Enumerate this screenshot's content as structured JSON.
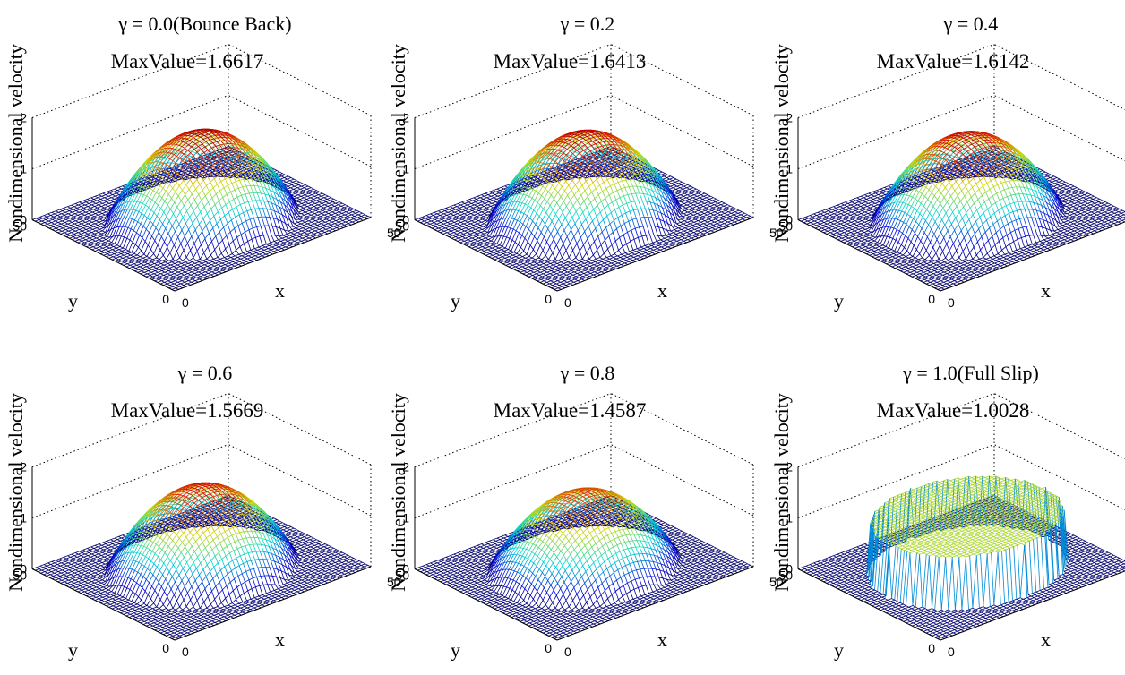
{
  "colors": {
    "low": "#0000c8",
    "high": "#c80000",
    "edge": "#000000",
    "grid": "#000000"
  },
  "chart_data": [
    {
      "type": "surface",
      "title": "γ = 0.0(Bounce Back)",
      "annotation": "MaxValue=1.6617",
      "max_value": 1.6617,
      "profile": "paraboloid",
      "xlabel": "x",
      "ylabel": "y",
      "zlabel": "Nondimensional velocity",
      "xlim": [
        0,
        50
      ],
      "ylim": [
        0,
        50
      ],
      "zlim": [
        0,
        2
      ],
      "x_ticks": [
        "0",
        "50"
      ],
      "y_ticks": [
        "0",
        "50"
      ],
      "z_ticks": [
        "0",
        "1",
        "2"
      ]
    },
    {
      "type": "surface",
      "title": "γ = 0.2",
      "annotation": "MaxValue=1.6413",
      "max_value": 1.6413,
      "profile": "paraboloid",
      "xlabel": "x",
      "ylabel": "y",
      "zlabel": "Nondimensional velocity",
      "xlim": [
        0,
        50
      ],
      "ylim": [
        0,
        50
      ],
      "zlim": [
        0,
        2
      ],
      "x_ticks": [
        "0",
        "50"
      ],
      "y_ticks": [
        "0",
        "50"
      ],
      "z_ticks": [
        "0",
        "1",
        "2"
      ]
    },
    {
      "type": "surface",
      "title": "γ = 0.4",
      "annotation": "MaxValue=1.6142",
      "max_value": 1.6142,
      "profile": "paraboloid",
      "xlabel": "x",
      "ylabel": "y",
      "zlabel": "Nondimensional velocity",
      "xlim": [
        0,
        50
      ],
      "ylim": [
        0,
        50
      ],
      "zlim": [
        0,
        2
      ],
      "x_ticks": [
        "0",
        "50"
      ],
      "y_ticks": [
        "0",
        "50"
      ],
      "z_ticks": [
        "0",
        "1",
        "2"
      ]
    },
    {
      "type": "surface",
      "title": "γ = 0.6",
      "annotation": "MaxValue=1.5669",
      "max_value": 1.5669,
      "profile": "paraboloid",
      "xlabel": "x",
      "ylabel": "y",
      "zlabel": "Nondimensional velocity",
      "xlim": [
        0,
        50
      ],
      "ylim": [
        0,
        50
      ],
      "zlim": [
        0,
        2
      ],
      "x_ticks": [
        "0",
        "50"
      ],
      "y_ticks": [
        "0",
        "50"
      ],
      "z_ticks": [
        "0",
        "1",
        "2"
      ]
    },
    {
      "type": "surface",
      "title": "γ = 0.8",
      "annotation": "MaxValue=1.4587",
      "max_value": 1.4587,
      "profile": "paraboloid",
      "xlabel": "x",
      "ylabel": "y",
      "zlabel": "Nondimensional velocity",
      "xlim": [
        0,
        50
      ],
      "ylim": [
        0,
        50
      ],
      "zlim": [
        0,
        2
      ],
      "x_ticks": [
        "0",
        "50"
      ],
      "y_ticks": [
        "0",
        "50"
      ],
      "z_ticks": [
        "0",
        "1",
        "2"
      ]
    },
    {
      "type": "surface",
      "title": "γ = 1.0(Full Slip)",
      "annotation": "MaxValue=1.0028",
      "max_value": 1.0028,
      "profile": "flat",
      "xlabel": "x",
      "ylabel": "y",
      "zlabel": "Nondimensional velocity",
      "xlim": [
        0,
        50
      ],
      "ylim": [
        0,
        50
      ],
      "zlim": [
        0,
        2
      ],
      "x_ticks": [
        "0",
        "50"
      ],
      "y_ticks": [
        "0",
        "50"
      ],
      "z_ticks": [
        "0",
        "1",
        "2"
      ]
    }
  ]
}
